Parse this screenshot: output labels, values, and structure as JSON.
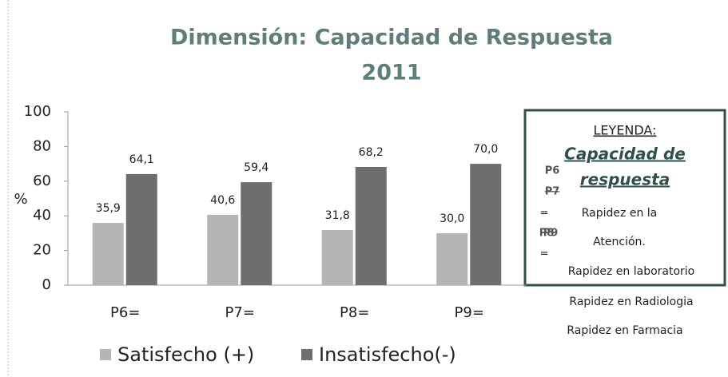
{
  "chart_data": {
    "type": "bar",
    "title": "Dimensión: Capacidad de Respuesta",
    "subtitle": "2011",
    "ylabel": "%",
    "categories": [
      "P6=",
      "P7=",
      "P8=",
      "P9="
    ],
    "series": [
      {
        "name": "Satisfecho (+)",
        "color": "#b5b5b5",
        "values": [
          35.9,
          40.6,
          31.8,
          30.0
        ],
        "value_labels": [
          "35,9",
          "40,6",
          "31,8",
          "30,0"
        ]
      },
      {
        "name": "Insatisfecho(-)",
        "color": "#6e6e6e",
        "values": [
          64.1,
          59.4,
          68.2,
          70.0
        ],
        "value_labels": [
          "64,1",
          "59,4",
          "68,2",
          "70,0"
        ]
      }
    ],
    "ylim": [
      0,
      100
    ],
    "yticks": [
      0,
      20,
      40,
      60,
      80,
      100
    ],
    "grid": false,
    "legend": "bottom",
    "annotation_box": {
      "heading": "LEYENDA:",
      "subheading": [
        "Capacidad de",
        "respuesta"
      ],
      "keys": [
        "P6",
        "P7",
        "P8",
        "P9"
      ],
      "separators": [
        "=",
        "="
      ],
      "items": [
        "Rapidez en la",
        "Atención.",
        "Rapidez en laboratorio",
        "Rapidez en Radiologia",
        "Rapidez en Farmacia"
      ]
    }
  }
}
